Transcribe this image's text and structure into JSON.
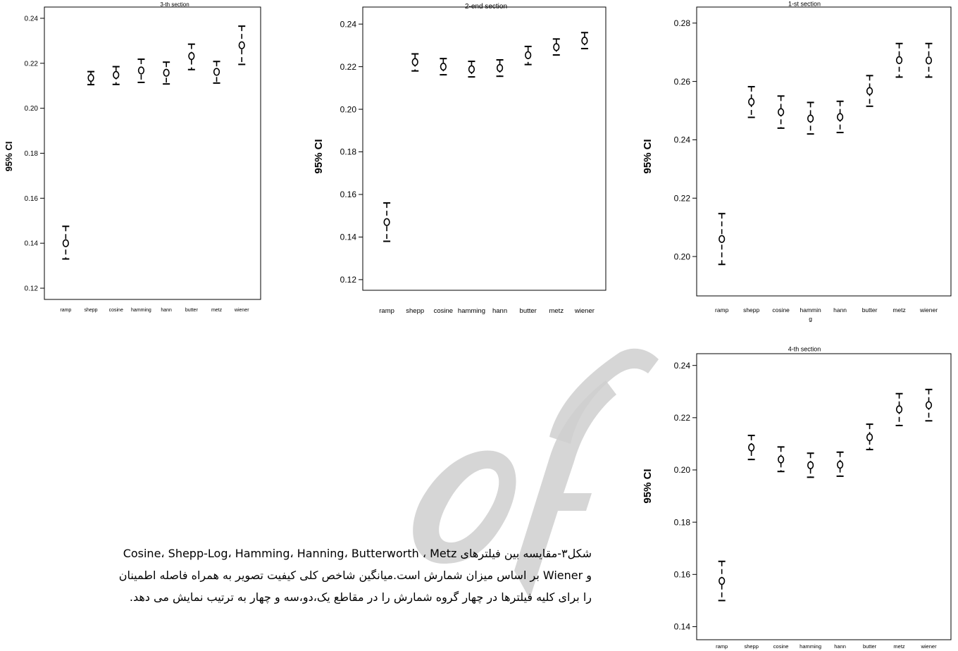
{
  "charts": [
    {
      "id": "section-3",
      "type": "errorbar",
      "title": "3-th section",
      "ylabel": "95% CI",
      "categories": [
        "ramp",
        "shepp",
        "cosine",
        "hamming",
        "hann",
        "butter",
        "metz",
        "wiener"
      ],
      "yticks": [
        "0.24",
        "0.22",
        "0.20",
        "0.18",
        "0.16",
        "0.14",
        "0.12"
      ],
      "ylim": [
        0.115,
        0.245
      ],
      "mean": [
        0.14,
        0.2135,
        0.2148,
        0.2168,
        0.2158,
        0.2232,
        0.2162,
        0.228
      ],
      "lower": [
        0.133,
        0.2105,
        0.2106,
        0.2115,
        0.2108,
        0.2172,
        0.2112,
        0.2195
      ],
      "upper": [
        0.1475,
        0.2163,
        0.2185,
        0.2218,
        0.2205,
        0.2285,
        0.2208,
        0.2365
      ]
    },
    {
      "id": "section-2",
      "type": "errorbar",
      "title": "2-end section",
      "ylabel": "95% CI",
      "categories": [
        "ramp",
        "shepp",
        "cosine",
        "hamming",
        "hann",
        "butter",
        "metz",
        "wiener"
      ],
      "yticks": [
        "0.24",
        "0.22",
        "0.20",
        "0.18",
        "0.16",
        "0.14",
        "0.12"
      ],
      "ylim": [
        0.115,
        0.248
      ],
      "mean": [
        0.147,
        0.2222,
        0.22,
        0.2188,
        0.2194,
        0.2254,
        0.2292,
        0.2322
      ],
      "lower": [
        0.138,
        0.218,
        0.2162,
        0.2152,
        0.2155,
        0.221,
        0.2255,
        0.2285
      ],
      "upper": [
        0.156,
        0.226,
        0.2238,
        0.2225,
        0.2232,
        0.2295,
        0.233,
        0.236
      ]
    },
    {
      "id": "section-1",
      "type": "errorbar",
      "title": "1-st section",
      "ylabel": "95% CI",
      "categories": [
        "ramp",
        "shepp",
        "cosine",
        "hammin\ng",
        "hann",
        "butter",
        "metz",
        "wiener"
      ],
      "yticks": [
        "0.28",
        "0.26",
        "0.24",
        "0.22",
        "0.20"
      ],
      "ylim": [
        0.1865,
        0.2855
      ],
      "mean": [
        0.206,
        0.253,
        0.2495,
        0.2473,
        0.2478,
        0.2567,
        0.2673,
        0.2672
      ],
      "lower": [
        0.1973,
        0.2477,
        0.244,
        0.242,
        0.2425,
        0.2515,
        0.2615,
        0.2615
      ],
      "upper": [
        0.2147,
        0.2582,
        0.255,
        0.2528,
        0.2532,
        0.262,
        0.273,
        0.273
      ]
    },
    {
      "id": "section-4",
      "type": "errorbar",
      "title": "4-th section",
      "ylabel": "95% CI",
      "categories": [
        "ramp",
        "shepp",
        "cosine",
        "hamming",
        "hann",
        "butter",
        "metz",
        "wiener"
      ],
      "yticks": [
        "0.24",
        "0.22",
        "0.20",
        "0.18",
        "0.16",
        "0.14"
      ],
      "ylim": [
        0.135,
        0.2445
      ],
      "mean": [
        0.1575,
        0.2086,
        0.204,
        0.2018,
        0.202,
        0.2125,
        0.2232,
        0.2248
      ],
      "lower": [
        0.15,
        0.204,
        0.1994,
        0.1972,
        0.1976,
        0.2078,
        0.217,
        0.2188
      ],
      "upper": [
        0.165,
        0.2132,
        0.2088,
        0.2064,
        0.2068,
        0.2175,
        0.2292,
        0.2308
      ]
    }
  ],
  "caption": {
    "line1": "شکل۳-مقایسه بین فیلترهای Cosine، Shepp-Log، Hamming، Hanning، Butterworth ، Metz",
    "line2": "و Wiener بر اساس میزان شمارش است.میانگین شاخص کلی کیفیت تصویر  به همراه فاصله اطمینان",
    "line3": "را برای کلیه فیلترها در چهار گروه شمارش را در مقاطع یک،دو،سه و چهار به ترتیب نمایش می دهد."
  }
}
